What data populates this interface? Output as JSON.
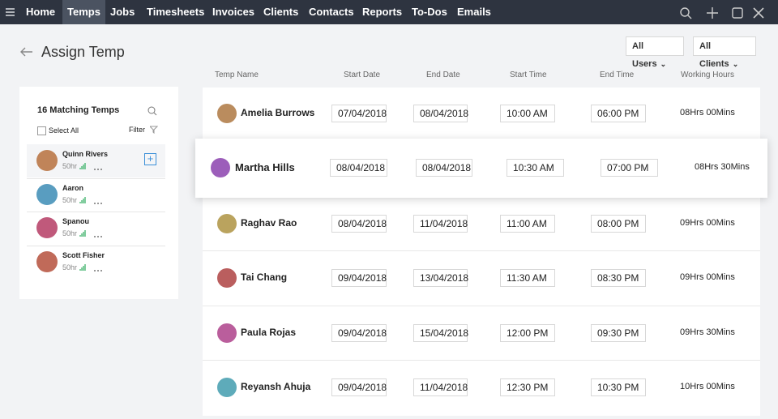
{
  "nav": {
    "items": [
      "Home",
      "Temps",
      "Jobs",
      "Timesheets",
      "Invoices",
      "Clients",
      "Contacts",
      "Reports",
      "To-Dos",
      "Emails"
    ],
    "active": 1
  },
  "page": {
    "title": "Assign Temp",
    "filters": [
      "All Users",
      "All Clients"
    ]
  },
  "sidebar": {
    "title": "16 Matching Temps",
    "select_all": "Select All",
    "filter": "Filter",
    "temps": [
      {
        "name": "Quinn Rivers",
        "hours": "50hr"
      },
      {
        "name": "Aaron",
        "hours": "50hr"
      },
      {
        "name": "Spanou",
        "hours": "50hr"
      },
      {
        "name": "Scott Fisher",
        "hours": "50hr"
      }
    ]
  },
  "table": {
    "columns": [
      "Temp Name",
      "Start Date",
      "End Date",
      "Start Time",
      "End Time",
      "Working Hours"
    ],
    "highlighted": 1,
    "rows": [
      [
        "Amelia Burrows",
        "07/04/2018",
        "08/04/2018",
        "10:00 AM",
        "06:00 PM",
        "08Hrs 00Mins"
      ],
      [
        "Martha Hills",
        "08/04/2018",
        "08/04/2018",
        "10:30 AM",
        "07:00 PM",
        "08Hrs 30Mins"
      ],
      [
        "Raghav Rao",
        "08/04/2018",
        "11/04/2018",
        "11:00 AM",
        "08:00 PM",
        "09Hrs 00Mins"
      ],
      [
        "Tai Chang",
        "09/04/2018",
        "13/04/2018",
        "11:30 AM",
        "08:30 PM",
        "09Hrs 00Mins"
      ],
      [
        "Paula Rojas",
        "09/04/2018",
        "15/04/2018",
        "12:00 PM",
        "09:30 PM",
        "09Hrs 30Mins"
      ],
      [
        "Reyansh Ahuja",
        "09/04/2018",
        "11/04/2018",
        "12:30 PM",
        "10:30 PM",
        "10Hrs 00Mins"
      ]
    ]
  }
}
